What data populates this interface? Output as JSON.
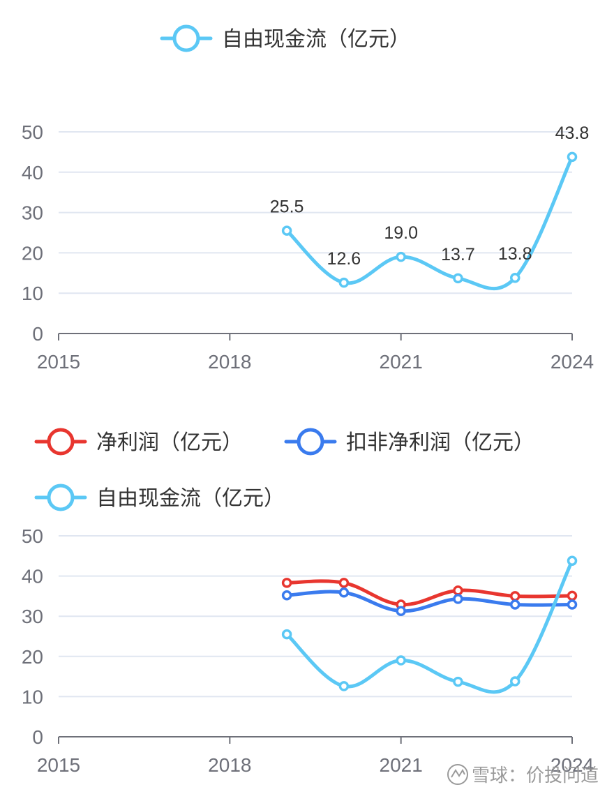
{
  "chart_data": [
    {
      "type": "line",
      "x_ticks": [
        "2015",
        "2018",
        "2021",
        "2024"
      ],
      "x": [
        2019,
        2020,
        2021,
        2022,
        2023,
        2024
      ],
      "y_ticks": [
        "0",
        "10",
        "20",
        "30",
        "40",
        "50"
      ],
      "ylim": [
        0,
        50
      ],
      "xlim": [
        2015,
        2024
      ],
      "grid": true,
      "legend_position": "top-center",
      "show_data_labels": true,
      "series": [
        {
          "name": "自由现金流（亿元）",
          "color": "#5bc8f5",
          "values": [
            25.5,
            12.6,
            19.0,
            13.7,
            13.8,
            43.8
          ],
          "labels": [
            "25.5",
            "12.6",
            "19.0",
            "13.7",
            "13.8",
            "43.8"
          ]
        }
      ]
    },
    {
      "type": "line",
      "x_ticks": [
        "2015",
        "2018",
        "2021",
        "2024"
      ],
      "x": [
        2019,
        2020,
        2021,
        2022,
        2023,
        2024
      ],
      "y_ticks": [
        "0",
        "10",
        "20",
        "30",
        "40",
        "50"
      ],
      "ylim": [
        0,
        50
      ],
      "xlim": [
        2015,
        2024
      ],
      "grid": true,
      "legend_position": "top-left",
      "show_data_labels": false,
      "series": [
        {
          "name": "净利润（亿元）",
          "color": "#e8362f",
          "values": [
            38.3,
            38.3,
            32.9,
            36.4,
            35.0,
            35.1
          ]
        },
        {
          "name": "扣非净利润（亿元）",
          "color": "#3a7bee",
          "values": [
            35.2,
            35.9,
            31.3,
            34.3,
            32.9,
            32.9
          ]
        },
        {
          "name": "自由现金流（亿元）",
          "color": "#5bc8f5",
          "values": [
            25.5,
            12.6,
            19.0,
            13.7,
            13.8,
            43.8
          ]
        }
      ]
    }
  ],
  "watermark": "雪球：价投问道"
}
